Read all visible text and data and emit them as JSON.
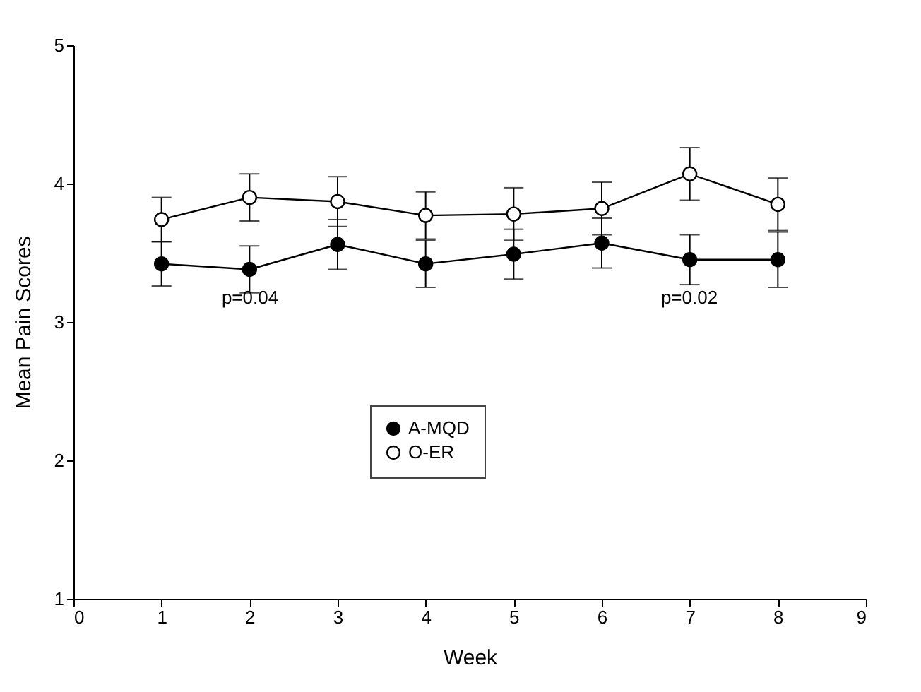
{
  "chart_data": {
    "type": "line",
    "xlabel": "Week",
    "ylabel": "Mean Pain Scores",
    "x": [
      1,
      2,
      3,
      4,
      5,
      6,
      7,
      8
    ],
    "series": [
      {
        "name": "A-MQD",
        "color": "#000000",
        "values": [
          3.42,
          3.38,
          3.56,
          3.42,
          3.49,
          3.57,
          3.45,
          3.45
        ],
        "errors": [
          0.16,
          0.17,
          0.18,
          0.17,
          0.18,
          0.18,
          0.18,
          0.2
        ]
      },
      {
        "name": "O-ER",
        "color": "#ffffff",
        "values": [
          3.74,
          3.9,
          3.87,
          3.77,
          3.78,
          3.82,
          4.07,
          3.85
        ],
        "errors": [
          0.16,
          0.17,
          0.18,
          0.17,
          0.19,
          0.19,
          0.19,
          0.19
        ]
      }
    ],
    "annotations": [
      "p=0.04",
      "p=0.02"
    ],
    "xlim": [
      0,
      9
    ],
    "xticks": [
      0,
      1,
      2,
      3,
      4,
      5,
      6,
      7,
      8,
      9
    ],
    "ylim": [
      1,
      5
    ],
    "yticks": [
      1,
      2,
      3,
      4,
      5
    ],
    "grid": false,
    "legend": "bottom",
    "marker": "circle",
    "line_style": "solid"
  }
}
